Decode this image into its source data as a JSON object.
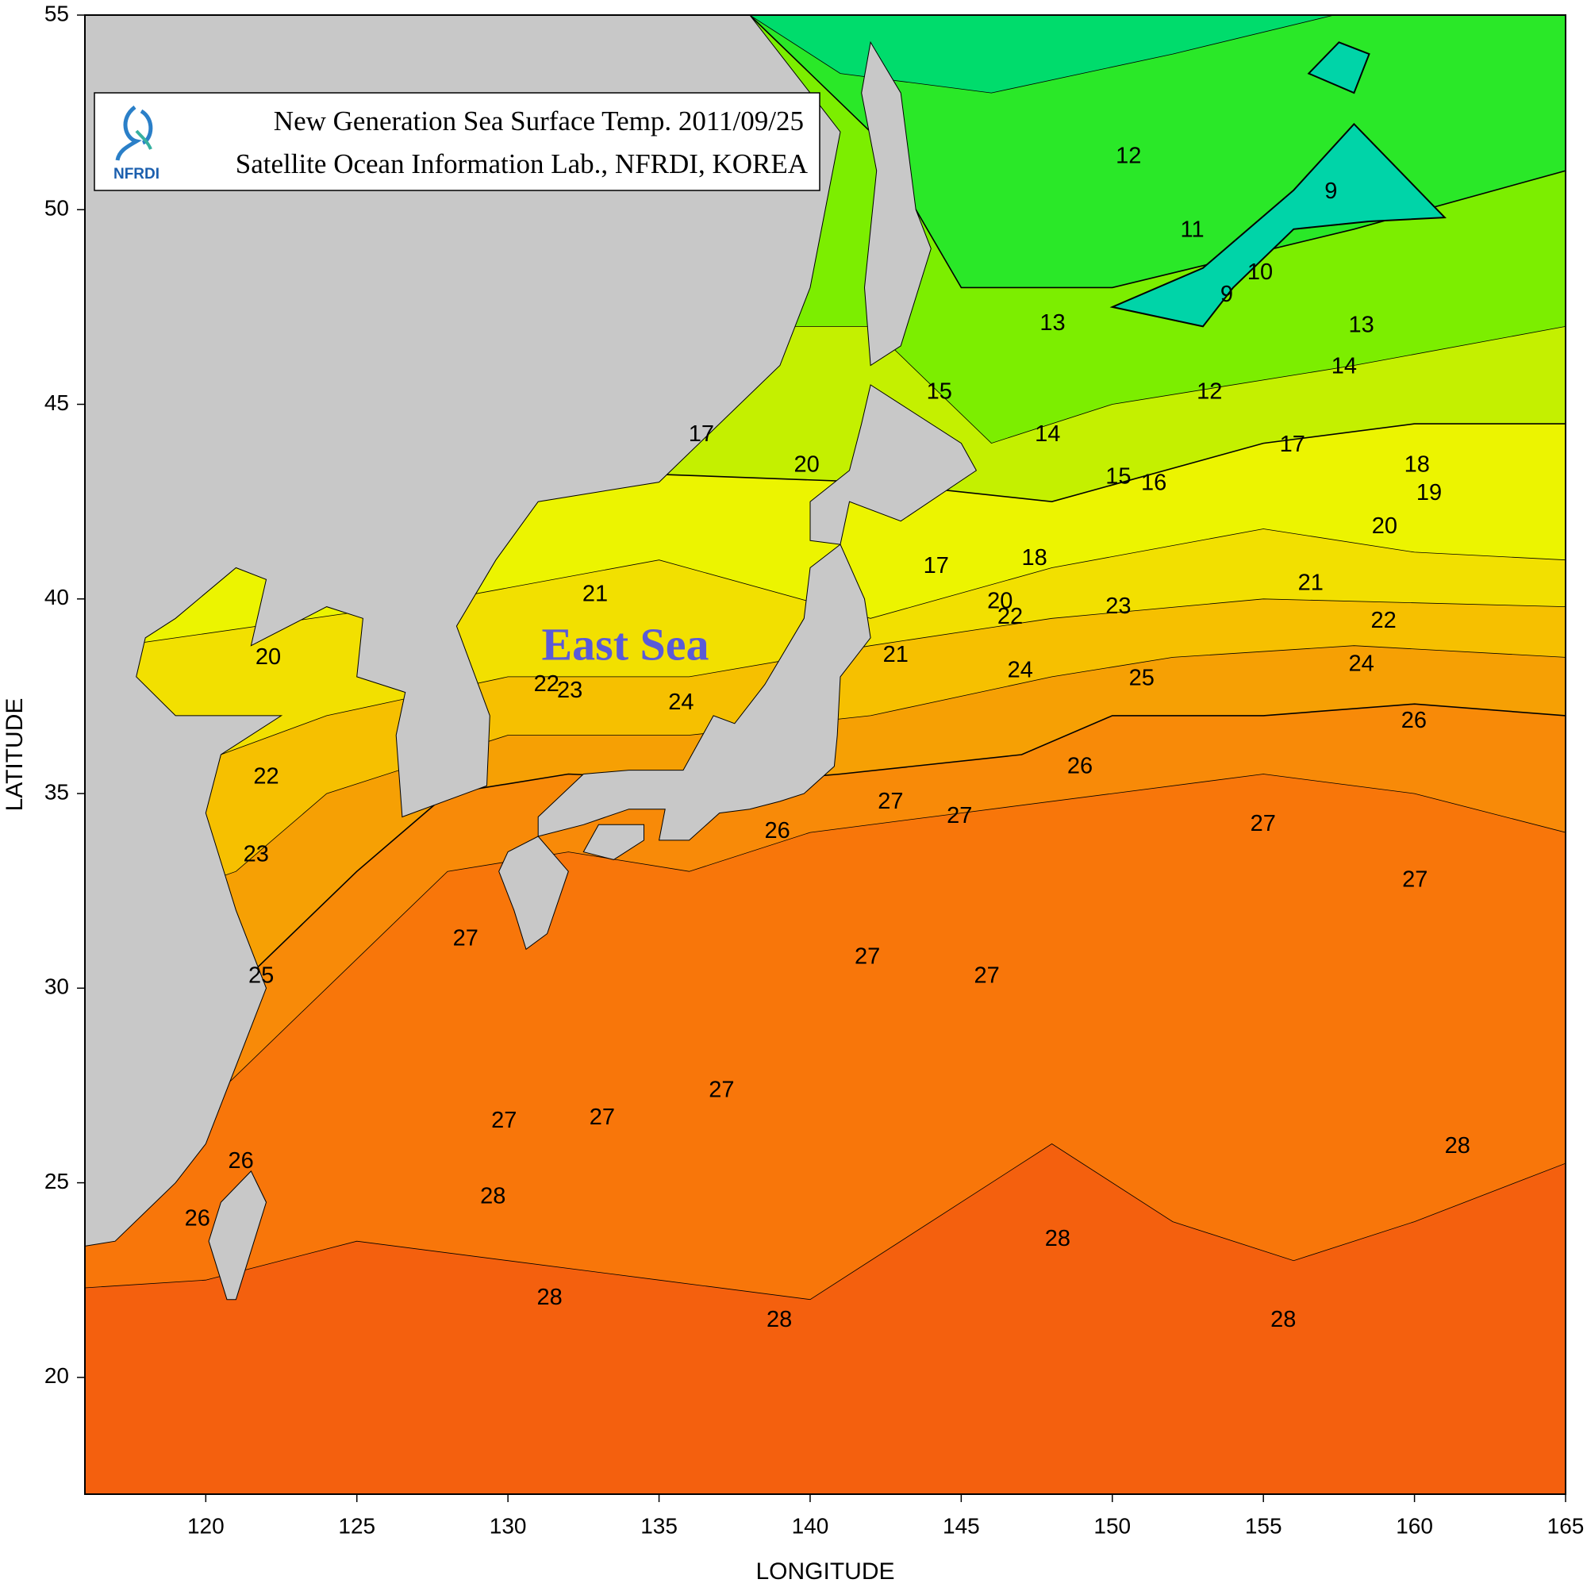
{
  "chart_data": {
    "type": "contour-map",
    "title": "New Generation Sea Surface Temp. 2011/09/25",
    "subtitle": "Satellite Ocean Information Lab., NFRDI, KOREA",
    "logo_text": "NFRDI",
    "sea_label": "East Sea",
    "xlabel": "LONGITUDE",
    "ylabel": "LATITUDE",
    "xlim": [
      116,
      165
    ],
    "ylim": [
      17,
      55
    ],
    "xticks": [
      120,
      125,
      130,
      135,
      140,
      145,
      150,
      155,
      160,
      165
    ],
    "yticks": [
      20,
      25,
      30,
      35,
      40,
      45,
      50,
      55
    ],
    "grid": false,
    "contour_labels": [
      12,
      11,
      9,
      10,
      9,
      13,
      13,
      14,
      12,
      15,
      14,
      17,
      20,
      17,
      18,
      19,
      15,
      16,
      20,
      17,
      18,
      21,
      21,
      20,
      22,
      23,
      22,
      21,
      20,
      24,
      24,
      25,
      22,
      23,
      24,
      26,
      26,
      22,
      27,
      27,
      27,
      26,
      23,
      27,
      27,
      27,
      27,
      25,
      27,
      27,
      27,
      26,
      28,
      28,
      26,
      28,
      28,
      28,
      28
    ]
  }
}
